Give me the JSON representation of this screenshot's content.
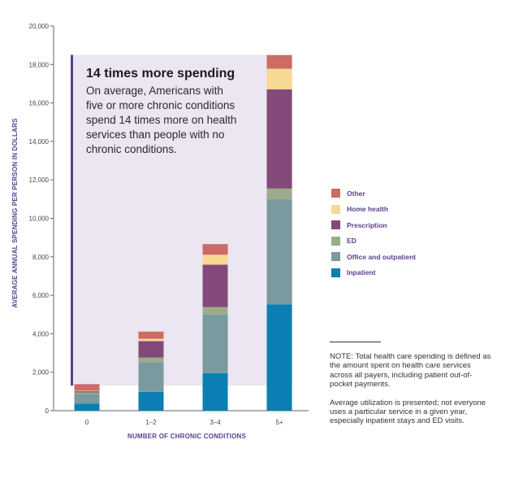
{
  "chart_data": {
    "type": "bar",
    "stacked": true,
    "categories": [
      "0",
      "1–2",
      "3–4",
      "5+"
    ],
    "series": [
      {
        "name": "Inpatient",
        "color": "#0b7fb3",
        "values": [
          360,
          980,
          1950,
          5530
        ]
      },
      {
        "name": "Office and outpatient",
        "color": "#7a9a9f",
        "values": [
          510,
          1540,
          3050,
          5470
        ]
      },
      {
        "name": "ED",
        "color": "#9aac8a",
        "values": [
          80,
          240,
          390,
          550
        ]
      },
      {
        "name": "Prescription",
        "color": "#834979",
        "values": [
          60,
          860,
          2200,
          5160
        ]
      },
      {
        "name": "Home health",
        "color": "#f7d992",
        "values": [
          30,
          120,
          520,
          1070
        ]
      },
      {
        "name": "Other",
        "color": "#cc6b63",
        "values": [
          340,
          370,
          550,
          710
        ]
      }
    ],
    "xlabel": "NUMBER OF CHRONIC CONDITIONS",
    "ylabel": "AVERAGE ANNUAL SPENDING PER PERSON IN DOLLARS",
    "ylim": [
      0,
      20000
    ],
    "yticks": [
      0,
      2000,
      4000,
      6000,
      8000,
      10000,
      12000,
      14000,
      16000,
      18000,
      20000
    ],
    "ytick_labels": [
      "0",
      "2,000",
      "4,000",
      "6,000",
      "8,000",
      "10,000",
      "12,000",
      "14,000",
      "16,000",
      "18,000",
      "20,000"
    ],
    "grid": false,
    "legend": "right",
    "callout_panel_top": 18500,
    "callout_panel_bottom": 1300
  },
  "callout": {
    "title": "14 times more spending",
    "lines": [
      "On average, Americans with",
      "five or more chronic conditions",
      "spend 14 times more on health",
      "services than people with no",
      "chronic conditions."
    ],
    "panel_color": "#ebe6f1",
    "bar_color": "#5b3f91"
  },
  "legend_items": [
    "Other",
    "Home health",
    "Prescription",
    "ED",
    "Office and outpatient",
    "Inpatient"
  ],
  "legend_colors": [
    "#cc6b63",
    "#f7d992",
    "#834979",
    "#9aac8a",
    "#7a9a9f",
    "#0b7fb3"
  ],
  "notes": {
    "note1": "NOTE: Total health care spending is defined as the amount spent on health care services across all payers, including patient out-of-pocket payments.",
    "note2": "Average utilization is presented; not everyone uses a particular service in a given year, especially inpatient stays and ED visits."
  }
}
